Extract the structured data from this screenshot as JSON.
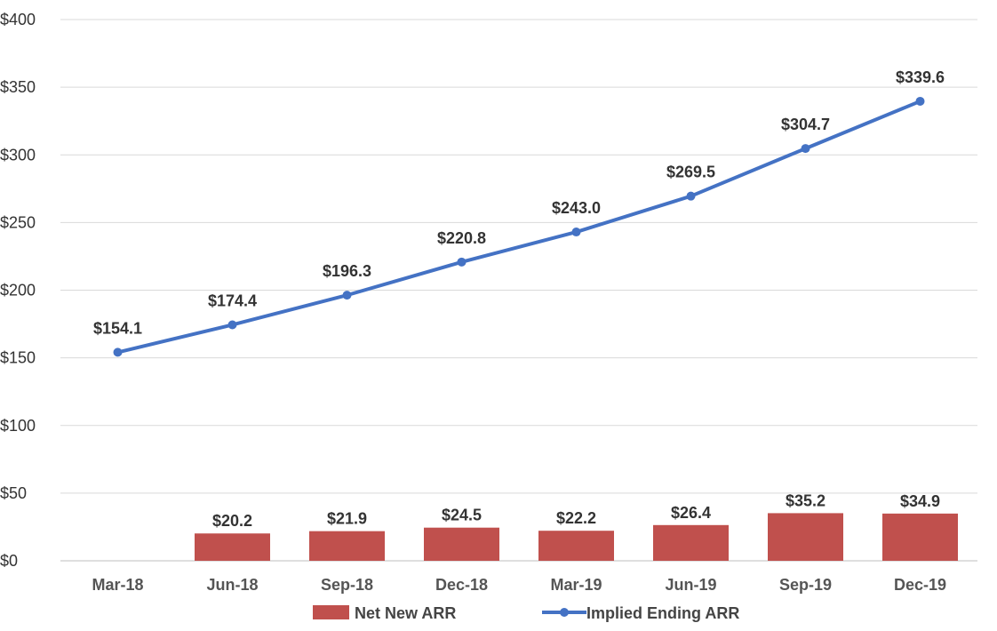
{
  "chart_data": {
    "type": "bar+line",
    "categories": [
      "Mar-18",
      "Jun-18",
      "Sep-18",
      "Dec-18",
      "Mar-19",
      "Jun-19",
      "Sep-19",
      "Dec-19"
    ],
    "series": [
      {
        "name": "Net New ARR",
        "type": "bar",
        "color": "#C0504D",
        "values": [
          null,
          20.2,
          21.9,
          24.5,
          22.2,
          26.4,
          35.2,
          34.9
        ],
        "labels": [
          "",
          "$20.2",
          "$21.9",
          "$24.5",
          "$22.2",
          "$26.4",
          "$35.2",
          "$34.9"
        ]
      },
      {
        "name": "Implied Ending ARR",
        "type": "line",
        "color": "#4472C4",
        "values": [
          154.1,
          174.4,
          196.3,
          220.8,
          243.0,
          269.5,
          304.7,
          339.6
        ],
        "labels": [
          "$154.1",
          "$174.4",
          "$196.3",
          "$220.8",
          "$243.0",
          "$269.5",
          "$304.7",
          "$339.6"
        ]
      }
    ],
    "ylim": [
      0,
      400
    ],
    "yticks": [
      0,
      50,
      100,
      150,
      200,
      250,
      300,
      350,
      400
    ],
    "ytick_labels": [
      "$0",
      "$50",
      "$100",
      "$150",
      "$200",
      "$250",
      "$300",
      "$350",
      "$400"
    ],
    "grid": true,
    "legend_position": "bottom",
    "title": "",
    "xlabel": "",
    "ylabel": ""
  }
}
